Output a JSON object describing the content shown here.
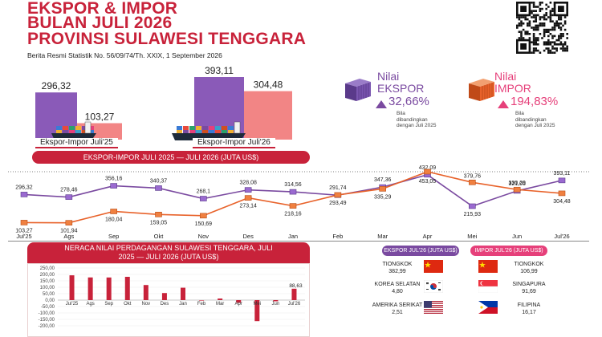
{
  "header": {
    "title_line1": "EKSPOR & IMPOR",
    "title_line2": "BULAN JULI 2026",
    "title_line3": "PROVINSI SULAWESI TENGGARA",
    "subtitle": "Berita Resmi Statistik No. 56/09/74/Th. XXIX, 1 September 2026"
  },
  "top_bars": {
    "left": {
      "caption": "Ekspor-Impor Juli'25",
      "export_value": "296,32",
      "import_value": "103,27"
    },
    "right": {
      "caption": "Ekspor-Impor Juli'26",
      "export_value": "393,11",
      "import_value": "304,48"
    }
  },
  "stats": {
    "export": {
      "label_line1": "Nilai",
      "label_line2": "EKSPOR",
      "pct": "32,66%",
      "note": "Bila dibandingkan dengan Juli 2025"
    },
    "import": {
      "label_line1": "Nilai",
      "label_line2": "IMPOR",
      "pct": "194,83%",
      "note": "Bila dibandingkan dengan Juli 2025"
    }
  },
  "colors": {
    "accent": "#c8223a",
    "export": "#7a4aa0",
    "import": "#e8622a",
    "import_pink": "#e6407a"
  },
  "line_banner": "EKSPOR-IMPOR JULI 2025 — JULI 2026 (JUTA US$)",
  "balance_banner": "NERACA NILAI PERDAGANGAN SULAWESI TENGGARA, JULI 2025 — JULI 2026 (JUTA US$)",
  "chart_data": [
    {
      "type": "bar",
      "title": "",
      "categories": [
        "Ekspor-Impor Juli'25",
        "Ekspor-Impor Juli'26"
      ],
      "series": [
        {
          "values": [
            296.32,
            393.11
          ]
        },
        {
          "values": [
            103.27,
            304.48
          ]
        }
      ]
    },
    {
      "type": "line",
      "title": "EKSPOR-IMPOR JULI 2025 — JULI 2026 (JUTA US$)",
      "categories": [
        "Jul'25",
        "Ags",
        "Sep",
        "Okt",
        "Nov",
        "Des",
        "Jan",
        "Feb",
        "Mar",
        "Apr",
        "Mei",
        "Jun",
        "Jul'26"
      ],
      "series": [
        {
          "values": [
            296.32,
            278.46,
            356.16,
            340.37,
            268.1,
            328.08,
            314.56,
            291.74,
            347.36,
            432.09,
            215.93,
            321.05,
            393.11
          ],
          "labels": [
            "296,32",
            "278,46",
            "356,16",
            "340,37",
            "268,1",
            "328,08",
            "314,56",
            "291,74",
            "347,36",
            "432,09",
            "215,93",
            "321,05",
            "393,11"
          ]
        },
        {
          "values": [
            103.27,
            101.94,
            180.04,
            159.05,
            150.69,
            273.14,
            218.16,
            293.49,
            335.29,
            453.05,
            379.76,
            330.29,
            304.48
          ],
          "labels": [
            "103,27",
            "101,94",
            "180,04",
            "159,05",
            "150,69",
            "273,14",
            "218,16",
            "293,49",
            "335,29",
            "453,05",
            "379,76",
            "330,29",
            "304,48"
          ]
        }
      ]
    },
    {
      "type": "bar",
      "title": "NERACA NILAI PERDAGANGAN SULAWESI TENGGARA, JULI 2025 — JULI 2026 (JUTA US$)",
      "categories": [
        "Jul'25",
        "Ags",
        "Sep",
        "Okt",
        "Nov",
        "Des",
        "Jan",
        "Feb",
        "Mar",
        "Apr",
        "Mei",
        "Jun",
        "Jul'26"
      ],
      "values": [
        193.05,
        176.52,
        176.12,
        181.32,
        117.41,
        54.94,
        96.4,
        -1.75,
        12.07,
        -20.96,
        -163.83,
        -9.24,
        88.63
      ],
      "ylim": [
        -200,
        250
      ],
      "yticks": [
        250,
        200,
        150,
        100,
        50,
        0,
        -50,
        -100,
        -150,
        -200
      ],
      "ytick_labels": [
        "250,00",
        "200,00",
        "150,00",
        "100,00",
        "50,00",
        "0,00",
        "-50,00",
        "-100,00",
        "-150,00",
        "-200,00"
      ],
      "annotation": "88,63"
    }
  ],
  "countries": {
    "export_header": "EKSPOR JUL'26 (JUTA US$)",
    "import_header": "IMPOR JUL'26 (JUTA US$)",
    "export": [
      {
        "name": "TIONGKOK",
        "value": "382,99",
        "flag": "china"
      },
      {
        "name": "KOREA SELATAN",
        "value": "4,80",
        "flag": "korea"
      },
      {
        "name": "AMERIKA SERIKAT",
        "value": "2,51",
        "flag": "usa"
      }
    ],
    "import": [
      {
        "name": "TIONGKOK",
        "value": "106,99",
        "flag": "china"
      },
      {
        "name": "SINGAPURA",
        "value": "91,69",
        "flag": "singapore"
      },
      {
        "name": "FILIPINA",
        "value": "16,17",
        "flag": "philippines"
      }
    ]
  }
}
